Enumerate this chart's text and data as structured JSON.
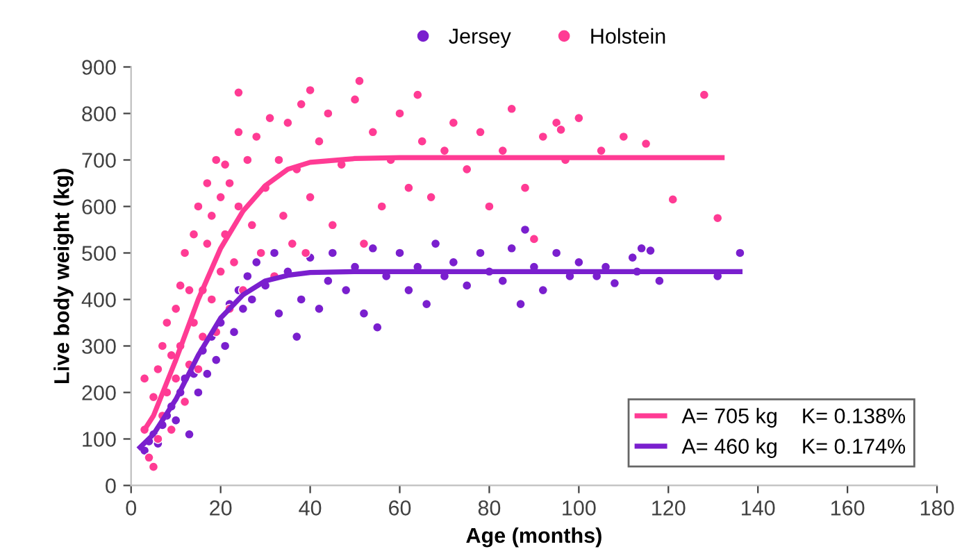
{
  "chart_data": {
    "type": "scatter",
    "xlabel": "Age (months)",
    "ylabel": "Live body weight (kg)",
    "xlim": [
      0,
      180
    ],
    "xticks": [
      0,
      20,
      40,
      60,
      80,
      100,
      120,
      140,
      160,
      180
    ],
    "ylim": [
      0,
      900
    ],
    "yticks": [
      0,
      100,
      200,
      300,
      400,
      500,
      600,
      700,
      800,
      900
    ],
    "grid": false,
    "legend": "top",
    "marker": "circle",
    "series": [
      {
        "name": "Jersey",
        "color": "#7a1fce",
        "x": [
          3,
          4,
          5,
          6,
          7,
          8,
          9,
          10,
          11,
          12,
          13,
          14,
          15,
          16,
          17,
          18,
          19,
          20,
          21,
          22,
          23,
          24,
          25,
          26,
          27,
          28,
          30,
          32,
          33,
          35,
          37,
          38,
          40,
          42,
          44,
          45,
          48,
          50,
          52,
          54,
          55,
          57,
          60,
          62,
          64,
          66,
          68,
          70,
          72,
          75,
          78,
          80,
          83,
          85,
          87,
          88,
          90,
          92,
          95,
          98,
          100,
          104,
          106,
          108,
          112,
          113,
          114,
          116,
          118,
          131,
          136
        ],
        "values": [
          75,
          95,
          110,
          90,
          130,
          150,
          170,
          140,
          200,
          230,
          110,
          240,
          200,
          290,
          240,
          320,
          270,
          350,
          300,
          390,
          330,
          420,
          380,
          450,
          400,
          480,
          430,
          500,
          370,
          460,
          320,
          400,
          490,
          380,
          440,
          500,
          420,
          470,
          370,
          510,
          340,
          450,
          500,
          420,
          470,
          390,
          520,
          450,
          480,
          430,
          500,
          460,
          440,
          510,
          390,
          550,
          470,
          420,
          500,
          450,
          480,
          450,
          470,
          435,
          490,
          460,
          510,
          505,
          440,
          450,
          500
        ]
      },
      {
        "name": "Holstein",
        "color": "#ff3b94",
        "x": [
          3,
          3,
          4,
          5,
          5,
          6,
          6,
          7,
          7,
          8,
          8,
          9,
          9,
          10,
          10,
          11,
          11,
          12,
          12,
          13,
          13,
          14,
          14,
          15,
          15,
          16,
          16,
          17,
          17,
          18,
          18,
          19,
          19,
          20,
          20,
          21,
          21,
          22,
          22,
          23,
          24,
          24,
          24,
          25,
          26,
          27,
          28,
          29,
          30,
          31,
          32,
          33,
          34,
          35,
          36,
          37,
          38,
          39,
          40,
          40,
          42,
          44,
          45,
          47,
          50,
          51,
          52,
          54,
          56,
          58,
          60,
          62,
          64,
          65,
          67,
          70,
          72,
          75,
          78,
          80,
          83,
          85,
          88,
          90,
          92,
          95,
          96,
          97,
          100,
          105,
          110,
          115,
          121,
          128,
          131
        ],
        "values": [
          230,
          120,
          60,
          40,
          190,
          100,
          250,
          150,
          300,
          200,
          350,
          120,
          280,
          380,
          230,
          300,
          430,
          180,
          500,
          260,
          420,
          350,
          540,
          250,
          600,
          420,
          320,
          520,
          650,
          400,
          580,
          700,
          330,
          460,
          620,
          690,
          540,
          380,
          650,
          480,
          845,
          760,
          600,
          420,
          700,
          560,
          750,
          500,
          640,
          790,
          450,
          700,
          580,
          780,
          520,
          680,
          820,
          500,
          850,
          620,
          740,
          800,
          560,
          690,
          830,
          870,
          520,
          760,
          600,
          700,
          800,
          640,
          840,
          740,
          620,
          720,
          780,
          680,
          760,
          600,
          720,
          810,
          640,
          530,
          750,
          780,
          765,
          700,
          790,
          720,
          750,
          735,
          615,
          840,
          575
        ]
      },
      {
        "name": "A= 705 kg    K= 0.138%",
        "type": "line",
        "marker": "none",
        "color": "#ff3b94",
        "x": [
          3,
          5,
          10,
          15,
          20,
          25,
          30,
          35,
          40,
          50,
          60,
          132
        ],
        "values": [
          120,
          150,
          270,
          400,
          510,
          590,
          645,
          680,
          695,
          703,
          705,
          705
        ]
      },
      {
        "name": "A= 460 kg    K= 0.174%",
        "type": "line",
        "marker": "none",
        "color": "#7a1fce",
        "x": [
          2,
          5,
          10,
          15,
          20,
          25,
          30,
          35,
          40,
          50,
          60,
          136
        ],
        "values": [
          82,
          110,
          185,
          280,
          360,
          410,
          440,
          452,
          458,
          460,
          460,
          460
        ]
      }
    ]
  }
}
